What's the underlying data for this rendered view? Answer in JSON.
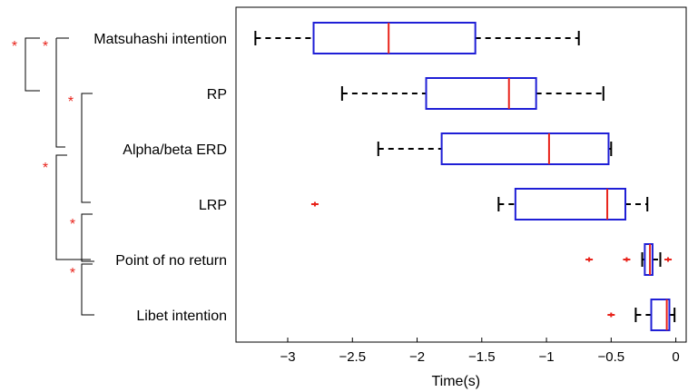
{
  "chart_data": {
    "type": "boxplot",
    "orientation": "horizontal",
    "xlabel": "Time(s)",
    "xlim": [
      -3.4,
      0.08
    ],
    "xticks": [
      -3,
      -2.5,
      -2,
      -1.5,
      -1,
      -0.5,
      0
    ],
    "xtick_labels": [
      "−3",
      "−2.5",
      "−2",
      "−1.5",
      "−1",
      "−0.5",
      "0"
    ],
    "categories": [
      "Matsuhashi intention",
      "RP",
      "Alpha/beta ERD",
      "LRP",
      "Point of no return",
      "Libet intention"
    ],
    "boxes": [
      {
        "label": "Matsuhashi intention",
        "whisker_low": -3.25,
        "q1": -2.8,
        "median": -2.22,
        "q3": -1.55,
        "whisker_high": -0.75,
        "outliers": []
      },
      {
        "label": "RP",
        "whisker_low": -2.58,
        "q1": -1.93,
        "median": -1.29,
        "q3": -1.08,
        "whisker_high": -0.56,
        "outliers": []
      },
      {
        "label": "Alpha/beta ERD",
        "whisker_low": -2.3,
        "q1": -1.81,
        "median": -0.98,
        "q3": -0.52,
        "whisker_high": -0.5,
        "outliers": []
      },
      {
        "label": "LRP",
        "whisker_low": -1.37,
        "q1": -1.24,
        "median": -0.53,
        "q3": -0.39,
        "whisker_high": -0.22,
        "outliers": [
          -2.79
        ]
      },
      {
        "label": "Point of no return",
        "whisker_low": -0.26,
        "q1": -0.24,
        "median": -0.2,
        "q3": -0.18,
        "whisker_high": -0.12,
        "outliers": [
          -0.67,
          -0.38,
          -0.06
        ]
      },
      {
        "label": "Libet intention",
        "whisker_low": -0.31,
        "q1": -0.19,
        "median": -0.07,
        "q3": -0.05,
        "whisker_high": -0.01,
        "outliers": [
          -0.5
        ]
      }
    ],
    "significance": [
      {
        "between": [
          "Matsuhashi intention",
          "RP"
        ],
        "marker": "*"
      },
      {
        "between": [
          "Matsuhashi intention",
          "Alpha/beta ERD"
        ],
        "marker": "*"
      },
      {
        "between": [
          "RP",
          "LRP"
        ],
        "marker": "*"
      },
      {
        "between": [
          "Alpha/beta ERD",
          "Point of no return"
        ],
        "marker": "*"
      },
      {
        "between": [
          "LRP",
          "Point of no return"
        ],
        "marker": "*"
      },
      {
        "between": [
          "Point of no return",
          "Libet intention"
        ],
        "marker": "*"
      }
    ],
    "colors": {
      "box": "#1f1fd6",
      "median": "#e8231b",
      "whisker": "#000000",
      "outlier": "#e8231b",
      "significance": "#e8231b"
    },
    "grid": false,
    "legend": "none"
  }
}
